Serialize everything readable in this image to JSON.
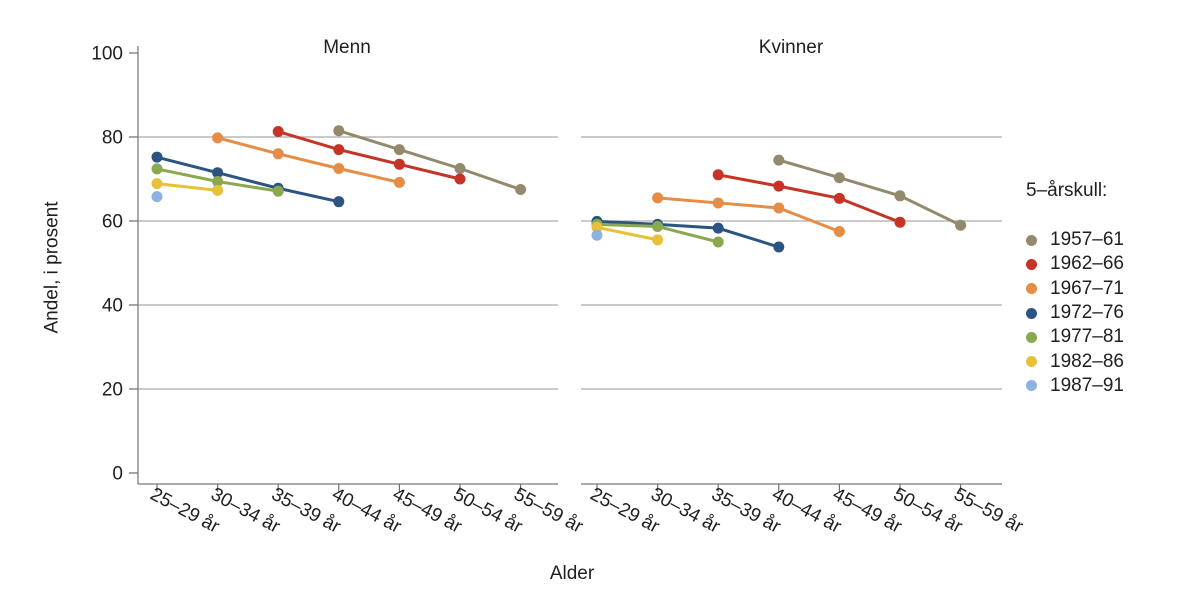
{
  "chart_data": {
    "type": "line",
    "xlabel": "Alder",
    "ylabel": "Andel, i prosent",
    "ylim": [
      0,
      100
    ],
    "yticks": [
      0,
      20,
      40,
      60,
      80,
      100
    ],
    "grid": "horizontal",
    "legend_title": "5–årskull:",
    "legend_position": "right",
    "categories": [
      "25–29 år",
      "30–34 år",
      "35–39 år",
      "40–44 år",
      "45–49 år",
      "50–54 år",
      "55–59 år"
    ],
    "panels": [
      {
        "key": "menn",
        "label": "Menn"
      },
      {
        "key": "kvinner",
        "label": "Kvinner"
      }
    ],
    "series": [
      {
        "name": "1957–61",
        "color": "#938A6E",
        "menn": [
          null,
          null,
          null,
          81.5,
          77.0,
          72.5,
          67.5
        ],
        "kvinner": [
          null,
          null,
          null,
          74.5,
          70.3,
          66.0,
          59.0
        ]
      },
      {
        "name": "1962–66",
        "color": "#C53427",
        "menn": [
          null,
          null,
          81.3,
          77.0,
          73.5,
          70.0,
          null
        ],
        "kvinner": [
          null,
          null,
          71.0,
          68.3,
          65.4,
          59.7,
          null
        ]
      },
      {
        "name": "1967–71",
        "color": "#E58C46",
        "menn": [
          null,
          79.8,
          76.0,
          72.5,
          69.2,
          null,
          null
        ],
        "kvinner": [
          null,
          65.5,
          64.3,
          63.1,
          57.5,
          null,
          null
        ]
      },
      {
        "name": "1972–76",
        "color": "#2B5483",
        "menn": [
          75.2,
          71.5,
          67.8,
          64.6,
          null,
          null,
          null
        ],
        "kvinner": [
          59.9,
          59.2,
          58.3,
          53.8,
          null,
          null,
          null
        ]
      },
      {
        "name": "1977–81",
        "color": "#8AA850",
        "menn": [
          72.4,
          69.4,
          67.1,
          null,
          null,
          null,
          null
        ],
        "kvinner": [
          59.2,
          58.7,
          55.0,
          null,
          null,
          null,
          null
        ]
      },
      {
        "name": "1982–86",
        "color": "#E7C137",
        "menn": [
          68.9,
          67.3,
          null,
          null,
          null,
          null,
          null
        ],
        "kvinner": [
          58.5,
          55.5,
          null,
          null,
          null,
          null,
          null
        ]
      },
      {
        "name": "1987–91",
        "color": "#8DB2E2",
        "menn": [
          65.8,
          null,
          null,
          null,
          null,
          null,
          null
        ],
        "kvinner": [
          56.6,
          null,
          null,
          null,
          null,
          null,
          null
        ]
      }
    ]
  }
}
